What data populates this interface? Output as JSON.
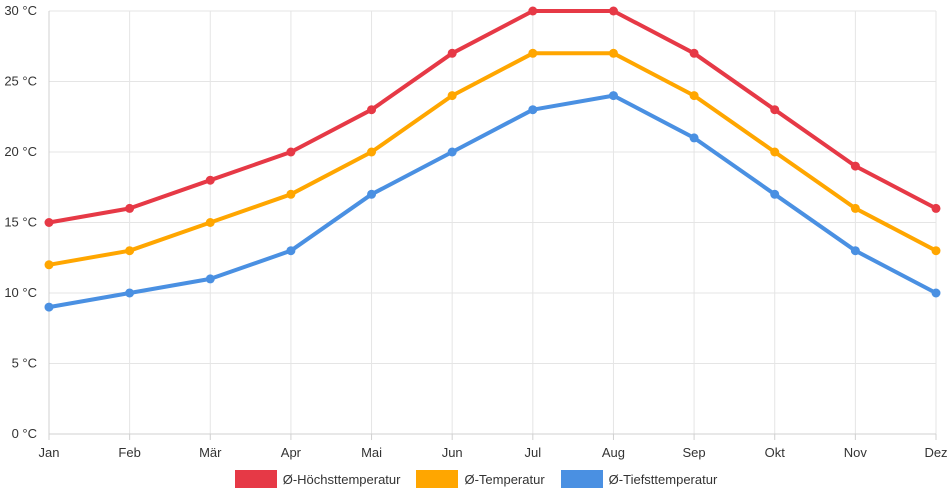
{
  "chart_data": {
    "type": "line",
    "categories": [
      "Jan",
      "Feb",
      "Mär",
      "Apr",
      "Mai",
      "Jun",
      "Jul",
      "Aug",
      "Sep",
      "Okt",
      "Nov",
      "Dez"
    ],
    "yticks": [
      "0 °C",
      "5 °C",
      "10 °C",
      "15 °C",
      "20 °C",
      "25 °C",
      "30 °C"
    ],
    "ylim": [
      0,
      30
    ],
    "ystep": 5,
    "grid": true,
    "legend_position": "bottom",
    "series": [
      {
        "name": "Ø-Höchsttemperatur",
        "color": "#e63946",
        "values": [
          15,
          16,
          18,
          20,
          23,
          27,
          30,
          30,
          27,
          23,
          19,
          16
        ]
      },
      {
        "name": "Ø-Temperatur",
        "color": "#ffa600",
        "values": [
          12,
          13,
          15,
          17,
          20,
          24,
          27,
          27,
          24,
          20,
          16,
          13
        ]
      },
      {
        "name": "Ø-Tiefsttemperatur",
        "color": "#4a90e2",
        "values": [
          9,
          10,
          11,
          13,
          17,
          20,
          23,
          24,
          21,
          17,
          13,
          10
        ]
      }
    ]
  }
}
